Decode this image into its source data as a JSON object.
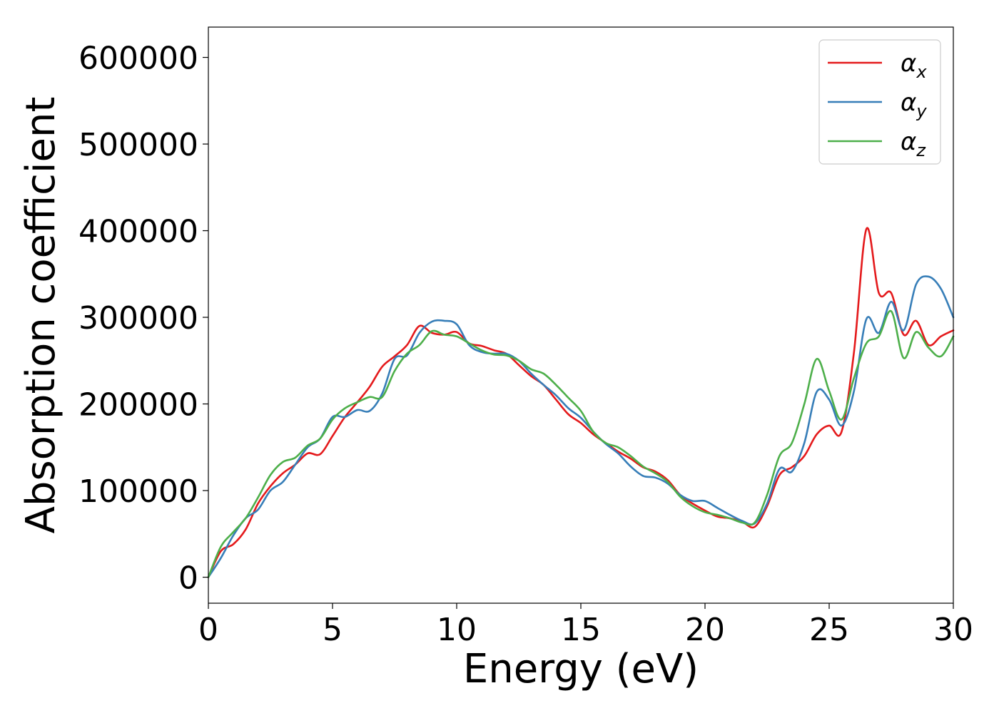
{
  "chart_data": {
    "type": "line",
    "title": "",
    "xlabel": "Energy (eV)",
    "ylabel": "Absorption coefficient",
    "xlim": [
      0,
      30
    ],
    "ylim": [
      -30000,
      635000
    ],
    "xticks": [
      0,
      5,
      10,
      15,
      20,
      25,
      30
    ],
    "yticks": [
      0,
      100000,
      200000,
      300000,
      400000,
      500000,
      600000
    ],
    "grid": false,
    "legend_position": "top-right",
    "series": [
      {
        "name": "α_x",
        "label_main": "α",
        "label_sub": "x",
        "color": "#e41a1c",
        "x": [
          0,
          0.5,
          1,
          1.5,
          2,
          2.5,
          3,
          3.5,
          4,
          4.5,
          5,
          5.5,
          6,
          6.5,
          7,
          7.5,
          8,
          8.5,
          9,
          9.5,
          10,
          10.5,
          11,
          11.5,
          12,
          12.5,
          13,
          13.5,
          14,
          14.5,
          15,
          15.5,
          16,
          16.5,
          17,
          17.5,
          18,
          18.5,
          19,
          19.5,
          20,
          20.5,
          21,
          21.5,
          22,
          22.5,
          23,
          23.5,
          24,
          24.5,
          25,
          25.5,
          26,
          26.5,
          27,
          27.5,
          28,
          28.5,
          29,
          29.5,
          30
        ],
        "y": [
          0,
          30000,
          38000,
          55000,
          85000,
          105000,
          120000,
          130000,
          143000,
          142000,
          163000,
          185000,
          202000,
          220000,
          243000,
          255000,
          268000,
          290000,
          282000,
          280000,
          283000,
          270000,
          267000,
          262000,
          258000,
          245000,
          232000,
          222000,
          205000,
          188000,
          178000,
          165000,
          155000,
          145000,
          137000,
          127000,
          122000,
          112000,
          95000,
          85000,
          77000,
          70000,
          68000,
          64000,
          58000,
          82000,
          118000,
          127000,
          140000,
          165000,
          175000,
          168000,
          260000,
          402000,
          328000,
          328000,
          280000,
          296000,
          268000,
          278000,
          285000
        ]
      },
      {
        "name": "α_y",
        "label_main": "α",
        "label_sub": "y",
        "color": "#377eb8",
        "x": [
          0,
          0.5,
          1,
          1.5,
          2,
          2.5,
          3,
          3.5,
          4,
          4.5,
          5,
          5.5,
          6,
          6.5,
          7,
          7.5,
          8,
          8.5,
          9,
          9.5,
          10,
          10.5,
          11,
          11.5,
          12,
          12.5,
          13,
          13.5,
          14,
          14.5,
          15,
          15.5,
          16,
          16.5,
          17,
          17.5,
          18,
          18.5,
          19,
          19.5,
          20,
          20.5,
          21,
          21.5,
          22,
          22.5,
          23,
          23.5,
          24,
          24.5,
          25,
          25.5,
          26,
          26.5,
          27,
          27.5,
          28,
          28.5,
          29,
          29.5,
          30
        ],
        "y": [
          0,
          22000,
          48000,
          68000,
          78000,
          100000,
          110000,
          130000,
          150000,
          160000,
          185000,
          185000,
          193000,
          192000,
          212000,
          252000,
          256000,
          282000,
          295000,
          296000,
          292000,
          268000,
          260000,
          258000,
          258000,
          250000,
          235000,
          222000,
          210000,
          195000,
          184000,
          168000,
          154000,
          143000,
          128000,
          117000,
          115000,
          108000,
          95000,
          88000,
          88000,
          80000,
          72000,
          65000,
          62000,
          85000,
          125000,
          122000,
          155000,
          214000,
          205000,
          175000,
          215000,
          298000,
          282000,
          318000,
          285000,
          338000,
          347000,
          333000,
          300000
        ]
      },
      {
        "name": "α_z",
        "label_main": "α",
        "label_sub": "z",
        "color": "#4daf4a",
        "x": [
          0,
          0.5,
          1,
          1.5,
          2,
          2.5,
          3,
          3.5,
          4,
          4.5,
          5,
          5.5,
          6,
          6.5,
          7,
          7.5,
          8,
          8.5,
          9,
          9.5,
          10,
          10.5,
          11,
          11.5,
          12,
          12.5,
          13,
          13.5,
          14,
          14.5,
          15,
          15.5,
          16,
          16.5,
          17,
          17.5,
          18,
          18.5,
          19,
          19.5,
          20,
          20.5,
          21,
          21.5,
          22,
          22.5,
          23,
          23.5,
          24,
          24.5,
          25,
          25.5,
          26,
          26.5,
          27,
          27.5,
          28,
          28.5,
          29,
          29.5,
          30
        ],
        "y": [
          0,
          35000,
          52000,
          68000,
          92000,
          118000,
          133000,
          138000,
          152000,
          160000,
          182000,
          195000,
          202000,
          208000,
          208000,
          238000,
          258000,
          268000,
          284000,
          280000,
          278000,
          270000,
          262000,
          257000,
          256000,
          250000,
          240000,
          235000,
          222000,
          207000,
          192000,
          168000,
          155000,
          150000,
          140000,
          128000,
          120000,
          110000,
          93000,
          82000,
          75000,
          72000,
          68000,
          63000,
          63000,
          95000,
          140000,
          155000,
          200000,
          252000,
          215000,
          182000,
          230000,
          270000,
          278000,
          307000,
          253000,
          283000,
          265000,
          255000,
          278000
        ]
      }
    ]
  }
}
